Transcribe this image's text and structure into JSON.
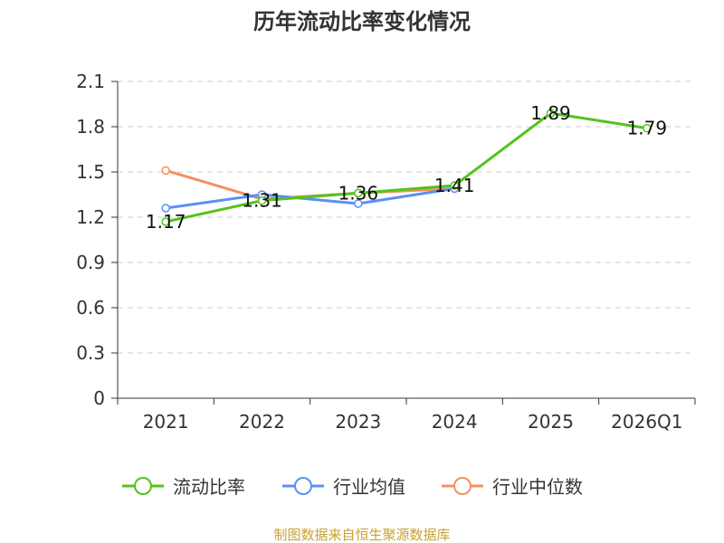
{
  "chart_data": {
    "type": "line",
    "title": "历年流动比率变化情况",
    "categories": [
      "2021",
      "2022",
      "2023",
      "2024",
      "2025",
      "2026Q1"
    ],
    "y_ticks": [
      "0",
      "0.3",
      "0.6",
      "0.9",
      "1.2",
      "1.5",
      "1.8",
      "2.1"
    ],
    "ylim": [
      0,
      2.1
    ],
    "grid": true,
    "legend_position": "bottom",
    "series": [
      {
        "name": "流动比率",
        "color": "#52c41a",
        "values": [
          1.17,
          1.31,
          1.36,
          1.41,
          1.89,
          1.79
        ],
        "labels": [
          "1.17",
          "1.31",
          "1.36",
          "1.41",
          "1.89",
          "1.79"
        ]
      },
      {
        "name": "行业均值",
        "color": "#5b8ff9",
        "values": [
          1.26,
          1.35,
          1.29,
          1.39,
          null,
          null
        ]
      },
      {
        "name": "行业中位数",
        "color": "#f4915e",
        "values": [
          1.51,
          1.32,
          1.36,
          1.39,
          null,
          null
        ]
      }
    ]
  },
  "footer": {
    "source": "制图数据来自恒生聚源数据库",
    "source_color": "#c8a232"
  }
}
